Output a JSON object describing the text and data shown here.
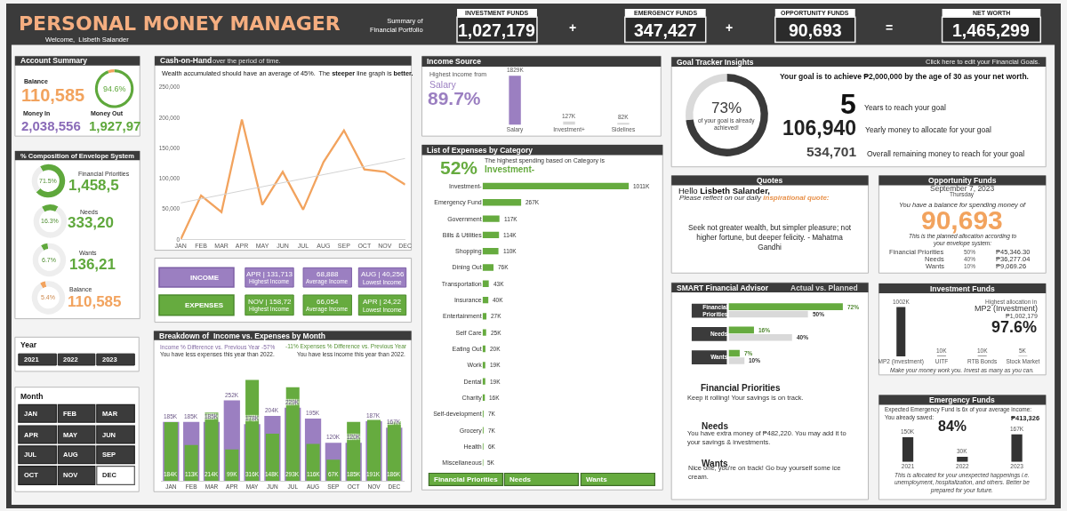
{
  "chart_data": [
    {
      "type": "other",
      "title": "PERSONAL MONEY MANAGER",
      "subtitle": "Welcome,  Lisbeth Salander",
      "annotations": [
        "Summary of Financial Portfolio",
        "INVESTMENT FUNDS",
        "1,027,179",
        "+",
        "EMERGENCY FUNDS",
        "347,427",
        "+",
        "OPPORTUNITY FUNDS",
        "90,693",
        "=",
        "NET WORTH",
        "1,465,299"
      ]
    },
    {
      "type": "donut",
      "title": "Account Summary",
      "categories": [
        null,
        null
      ],
      "values": [
        94.6,
        5.4
      ],
      "colors": [
        "#5fa83c",
        "#f2a35e"
      ],
      "annotations": [
        "94.6%",
        "Balance",
        "110,585",
        "Money In",
        "2,038,556",
        "Money Out",
        "1,927,97"
      ]
    },
    {
      "type": "other",
      "title": "% Composition of Envelope System"
    },
    {
      "type": "donut",
      "title": "Financial Priorities",
      "categories": [
        null,
        null
      ],
      "values": [
        71.5,
        28.5
      ],
      "colors": [
        "#5fa83c",
        "#eeeeee"
      ],
      "annotations": [
        "71.5%",
        "1,458,5"
      ]
    },
    {
      "type": "donut",
      "title": "Needs",
      "categories": [
        null,
        null
      ],
      "values": [
        16.3,
        83.7
      ],
      "colors": [
        "#5fa83c",
        "#eeeeee"
      ],
      "annotations": [
        "16.3%",
        "333,20"
      ]
    },
    {
      "type": "donut",
      "title": "Wants",
      "categories": [
        null,
        null
      ],
      "values": [
        6.7,
        93.3
      ],
      "colors": [
        "#5fa83c",
        "#eeeeee"
      ],
      "annotations": [
        "6.7%",
        "136,21"
      ]
    },
    {
      "type": "donut",
      "title": "Balance",
      "categories": [
        null,
        null
      ],
      "values": [
        5.4,
        94.6
      ],
      "colors": [
        "#f2a35e",
        "#eeeeee"
      ],
      "annotations": [
        "5.4%",
        "110,585"
      ]
    },
    {
      "type": "other",
      "title": "Year",
      "annotations": [
        "2021",
        "2022",
        "2023"
      ]
    },
    {
      "type": "other",
      "title": "Month",
      "annotations": [
        "JAN",
        "FEB",
        "MAR",
        "APR",
        "MAY",
        "JUN",
        "JUL",
        "AUG",
        "SEP",
        "OCT",
        "NOV",
        "DEC"
      ]
    },
    {
      "type": "line",
      "title": "Cash-on-Hand",
      "subtitle": "over the period of time.",
      "annotations": [
        "Wealth accumulated should have an average of 45%.  The",
        "steeper",
        "line graph is",
        "better."
      ],
      "categories": [
        "JAN",
        "FEB",
        "MAR",
        "APR",
        "MAY",
        "JUN",
        "JUL",
        "AUG",
        "SEP",
        "OCT",
        "NOV",
        "DEC"
      ],
      "series": [
        {
          "color": "#f2a35e",
          "values": [
            0,
            72000,
            45000,
            197000,
            57000,
            111000,
            49000,
            127000,
            179000,
            115000,
            111000,
            90000
          ]
        },
        {
          "type": "line",
          "x": [
            "JAN",
            "DEC"
          ],
          "values": [
            60000,
            133000
          ],
          "color": "#d3d3d3"
        }
      ],
      "ylim": [
        0,
        250000
      ],
      "yticks": [
        0,
        {
          "value": 50000,
          "label": "50,000"
        },
        {
          "value": 100000,
          "label": "100,000"
        },
        {
          "value": 150000,
          "label": "150,000"
        },
        {
          "value": 200000,
          "label": "200,000"
        },
        {
          "value": 250000,
          "label": "250,000"
        }
      ]
    },
    {
      "type": "other",
      "annotations": [
        "INCOME",
        "APR | 131,713",
        "Highest Income",
        "68,888",
        "Average Income",
        "AUG | 40,256",
        "Lowest Income",
        "EXPENSES",
        "NOV | 158,72",
        "Highest Income",
        "66,054",
        "Average Income",
        "APR | 24,22",
        "Lowest Income"
      ]
    },
    {
      "type": "bar",
      "title": "Breakdown of  Income vs. Expenses by Month",
      "annotations": [
        "Income % Difference vs. Previous Year -57%",
        "-11% Expenses % Difference vs. Previous Year",
        "You have less expenses this year than 2022.",
        "You have less income this year than 2022."
      ],
      "categories": [
        "JAN",
        "FEB",
        "MAR",
        "APR",
        "MAY",
        "JUN",
        "JUL",
        "AUG",
        "SEP",
        "OCT",
        "NOV",
        "DEC"
      ],
      "series": [
        {
          "color": "#9b7fc1",
          "values": [
            185,
            185,
            185,
            252,
            178,
            204,
            229,
            195,
            120,
            120,
            187,
            167
          ],
          "value_labels": [
            "185K",
            "185K",
            "185K",
            "252K",
            "178K",
            "204K",
            "229K",
            "195K",
            "120K",
            "120K",
            "187K",
            "167K"
          ]
        },
        {
          "color": "#66ab3f",
          "values": [
            184,
            113,
            214,
            99,
            316,
            148,
            293,
            116,
            67,
            185,
            191,
            186
          ],
          "value_labels": [
            "184K",
            "113K",
            "214K",
            "99K",
            "316K",
            "148K",
            "293K",
            "116K",
            "67K",
            "185K",
            "191K",
            "186K"
          ]
        }
      ],
      "tick_labels": "x"
    },
    {
      "type": "bar",
      "title": "Income Source",
      "annotations": [
        "Highest income from",
        "Salary",
        "89.7%"
      ],
      "categories": [
        "Salary",
        "Investment+",
        "Sidelines"
      ],
      "values": [
        1829,
        127,
        82
      ],
      "colors": [
        "#9b7fc1",
        "#d6d6d6",
        "#d6d6d6"
      ],
      "value_labels": [
        "1829K",
        "127K",
        "82K"
      ],
      "tick_labels": "x"
    },
    {
      "type": "bar",
      "orientation": "horizontal",
      "title": "List of Expenses by Category",
      "annotations": [
        "52%",
        "The highest spending based on Category is",
        "Investment-",
        "Financial Priorities",
        "Needs",
        "Wants"
      ],
      "categories": [
        "Investment-",
        "Emergency Fund",
        "Government",
        "Bills & Utilities",
        "Shopping",
        "Dining Out",
        "Transportation",
        "Insurance",
        "Entertainment",
        "Self Care",
        "Eating Out",
        "Work",
        "Dental",
        "Charity",
        "Self-development",
        "Grocery",
        "Health",
        "Miscellaneous"
      ],
      "values": [
        1011,
        267,
        117,
        114,
        110,
        76,
        43,
        40,
        27,
        25,
        20,
        19,
        19,
        16,
        7,
        7,
        6,
        5
      ],
      "color": "#66ab3f",
      "value_labels": [
        "1011K",
        "267K",
        "117K",
        "114K",
        "110K",
        "76K",
        "43K",
        "40K",
        "27K",
        "25K",
        "20K",
        "19K",
        "19K",
        "16K",
        "7K",
        "7K",
        "6K",
        "5K"
      ],
      "tick_labels": "y"
    },
    {
      "type": "donut",
      "title": "Goal Tracker Insights",
      "categories": [
        null,
        null
      ],
      "values": [
        73,
        27
      ],
      "colors": [
        "#3a3a3a",
        "#dadada"
      ],
      "annotations": [
        "Click here to edit your Financial Goals.",
        "73%",
        "of your goal is already achieved!",
        "Your goal is to achieve ₱2,000,000 by the age of 30 as your net worth.",
        "5",
        "Years to reach your goal",
        "106,940",
        "Yearly money to allocate for your goal",
        "534,701",
        "Overall remaining money to reach for your goal"
      ]
    },
    {
      "type": "other",
      "title": "Quotes",
      "annotations": [
        "Hello",
        "Lisbeth Salander,",
        "Please reflect on our daily",
        "inspirational quote:",
        "Seek not greater wealth, but simpler pleasure; not higher fortune, but deeper felicity. - Mahatma Gandhi"
      ]
    },
    {
      "type": "other",
      "title": "Opportunity Funds",
      "annotations": [
        "September 7, 2023",
        "Thursday",
        "You have a balance for spending money of",
        "90,693",
        "This is the planned allocation according to your envelope system:",
        "Financial Priorities",
        "50%",
        "₱45,346.30",
        "Needs",
        "40%",
        "₱36,277.04",
        "Wants",
        "10%",
        "₱9,069.26"
      ]
    },
    {
      "type": "bar",
      "orientation": "horizontal",
      "title": "SMART Financial Advisor",
      "subtitle": "Actual vs. Planned",
      "categories": [
        "Financial Priorities",
        "Needs",
        "Wants"
      ],
      "series": [
        {
          "color": "#66ab3f",
          "values": [
            72,
            16,
            7
          ],
          "value_labels": [
            "72%",
            "16%",
            "7%"
          ]
        },
        {
          "color": "#d9d9d9",
          "values": [
            50,
            40,
            10
          ],
          "value_labels": [
            "50%",
            "40%",
            "10%"
          ]
        }
      ],
      "tick_labels": "y",
      "annotations": [
        "Financial Priorities",
        "Keep it rolling! Your savings is on track.",
        "Needs",
        "You have extra money of ₱482,220. You may add it to your savings & investments.",
        "Wants",
        "Nice one, you're on track! Go buy yourself some ice cream."
      ]
    },
    {
      "type": "bar",
      "title": "Investment Funds",
      "categories": [
        "MP2 (Investment)",
        "UITF",
        "RTB Bonds",
        "Stock Market"
      ],
      "values": [
        1002,
        10,
        10,
        5
      ],
      "color": "#333333",
      "value_labels": [
        "1002K",
        "10K",
        "10K",
        "5K"
      ],
      "annotations": [
        "Highest allocation in",
        "MP2 (Investment)",
        "₱1,002,179",
        "97.6%",
        "Make your money work you. Invest as many as you can."
      ],
      "tick_labels": "x"
    },
    {
      "type": "bar",
      "title": "Emergency Funds",
      "categories": [
        "2021",
        "2022",
        "2023"
      ],
      "values": [
        150,
        30,
        167
      ],
      "color": "#333333",
      "value_labels": [
        "150K",
        "30K",
        "167K"
      ],
      "annotations": [
        "Expected Emergency Fund is 6x of your average income:",
        "₱413,326",
        "You already saved:",
        "84%",
        "This is allocated for your unexpected happenings i.e. unemployment, hospitalization, and others. Better be prepared for your future."
      ],
      "tick_labels": "x"
    }
  ]
}
